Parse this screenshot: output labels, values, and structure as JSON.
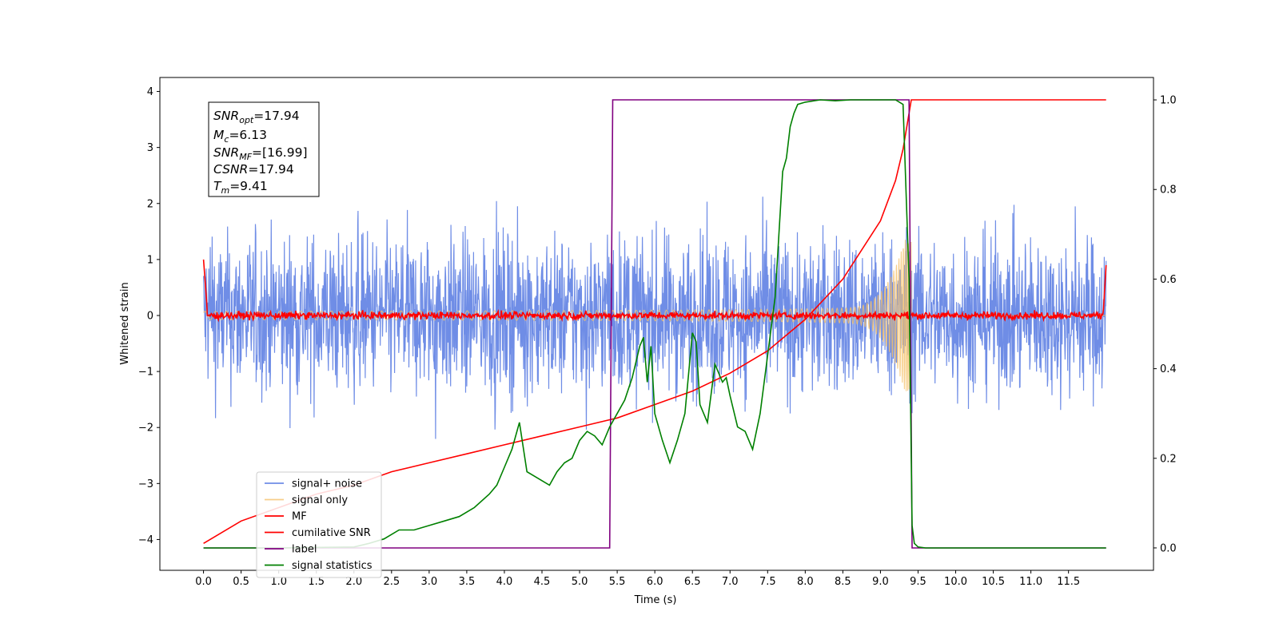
{
  "chart_data": {
    "type": "line",
    "title": "",
    "xlabel": "Time (s)",
    "ylabel": "Whitened strain",
    "xlim": [
      -0.58,
      12.63
    ],
    "ylim": [
      -4.55,
      4.25
    ],
    "y2lim": [
      -0.05,
      1.05
    ],
    "grid": false,
    "legend_position": "lower-left",
    "x_ticks": [
      "0.0",
      "0.5",
      "1.0",
      "1.5",
      "2.0",
      "2.5",
      "3.0",
      "3.5",
      "4.0",
      "4.5",
      "5.0",
      "5.5",
      "6.0",
      "6.5",
      "7.0",
      "7.5",
      "8.0",
      "8.5",
      "9.0",
      "9.5",
      "10.0",
      "10.5",
      "11.0",
      "11.5"
    ],
    "y_ticks": [
      "4",
      "3",
      "2",
      "1",
      "0",
      "−1",
      "−2",
      "−3",
      "−4"
    ],
    "y2_ticks": [
      "1.0",
      "0.8",
      "0.6",
      "0.4",
      "0.2",
      "0.0"
    ],
    "annotation": {
      "snr_opt": "=17.94",
      "mc": "=6.13",
      "snr_mf": "=[16.99]",
      "csnr": "=17.94",
      "tm": "=9.41"
    },
    "series": [
      {
        "name": "signal+ noise",
        "color": "#6f8de6",
        "axis": "left",
        "kind": "noise",
        "amplitude": 1.0,
        "x_range": [
          0,
          12
        ]
      },
      {
        "name": "signal only",
        "color": "#f5c26b",
        "axis": "left",
        "kind": "chirp",
        "t_merge": 9.41,
        "x_range": [
          0,
          12
        ]
      },
      {
        "name": "MF",
        "color": "#ff0000",
        "axis": "left",
        "kind": "mf",
        "x_range": [
          0,
          12
        ]
      },
      {
        "name": "cumilative SNR",
        "color": "#ff0000",
        "axis": "right",
        "x": [
          0.0,
          0.5,
          1.0,
          1.5,
          2.0,
          2.5,
          3.0,
          3.5,
          4.0,
          4.5,
          5.0,
          5.5,
          6.0,
          6.5,
          7.0,
          7.5,
          8.0,
          8.5,
          9.0,
          9.2,
          9.3,
          9.41,
          12.0
        ],
        "values": [
          0.01,
          0.06,
          0.09,
          0.12,
          0.14,
          0.17,
          0.19,
          0.21,
          0.23,
          0.25,
          0.27,
          0.29,
          0.32,
          0.35,
          0.39,
          0.44,
          0.51,
          0.6,
          0.73,
          0.82,
          0.89,
          1.0,
          1.0
        ]
      },
      {
        "name": "label",
        "color": "#800080",
        "axis": "right",
        "x": [
          0.0,
          5.4,
          5.44,
          9.38,
          9.42,
          12.0
        ],
        "values": [
          0.0,
          0.0,
          1.0,
          1.0,
          0.0,
          0.0
        ]
      },
      {
        "name": "signal statistics",
        "color": "#008000",
        "axis": "right",
        "x": [
          0.0,
          1.0,
          2.0,
          2.2,
          2.4,
          2.6,
          2.8,
          3.0,
          3.2,
          3.4,
          3.6,
          3.8,
          3.9,
          4.0,
          4.1,
          4.2,
          4.3,
          4.4,
          4.5,
          4.6,
          4.7,
          4.8,
          4.9,
          5.0,
          5.1,
          5.2,
          5.3,
          5.4,
          5.5,
          5.6,
          5.7,
          5.8,
          5.85,
          5.9,
          5.95,
          6.0,
          6.1,
          6.2,
          6.3,
          6.4,
          6.5,
          6.55,
          6.6,
          6.7,
          6.8,
          6.9,
          6.95,
          7.0,
          7.1,
          7.2,
          7.3,
          7.4,
          7.5,
          7.6,
          7.7,
          7.75,
          7.8,
          7.85,
          7.9,
          8.0,
          8.2,
          8.4,
          8.6,
          8.8,
          9.0,
          9.2,
          9.3,
          9.38,
          9.42,
          9.45,
          9.5,
          9.6,
          12.0
        ],
        "values": [
          0.0,
          0.0,
          0.002,
          0.01,
          0.02,
          0.04,
          0.04,
          0.05,
          0.06,
          0.07,
          0.09,
          0.12,
          0.14,
          0.18,
          0.22,
          0.28,
          0.17,
          0.16,
          0.15,
          0.14,
          0.17,
          0.19,
          0.2,
          0.24,
          0.26,
          0.25,
          0.23,
          0.27,
          0.3,
          0.33,
          0.38,
          0.45,
          0.47,
          0.37,
          0.45,
          0.3,
          0.24,
          0.19,
          0.24,
          0.3,
          0.48,
          0.46,
          0.32,
          0.28,
          0.41,
          0.37,
          0.38,
          0.34,
          0.27,
          0.26,
          0.22,
          0.3,
          0.43,
          0.56,
          0.84,
          0.87,
          0.94,
          0.97,
          0.99,
          0.995,
          1.0,
          0.998,
          1.0,
          1.0,
          1.0,
          1.0,
          0.99,
          0.6,
          0.05,
          0.01,
          0.002,
          0.0,
          0.0
        ]
      }
    ]
  }
}
